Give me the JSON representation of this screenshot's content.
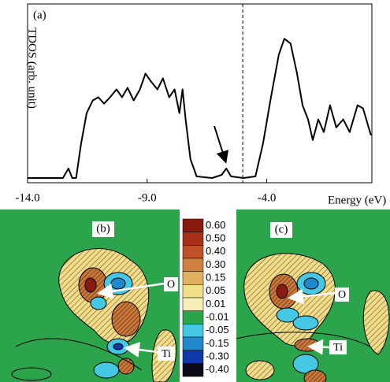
{
  "chart_data": {
    "type": "line",
    "panel_label": "(a)",
    "ylabel": "TDOS (arb. unit)",
    "xlabel": "Energy (eV)",
    "x": [
      -14.0,
      -12.52,
      -12.29,
      -12.13,
      -11.97,
      -11.76,
      -11.53,
      -11.27,
      -11.04,
      -10.8,
      -10.55,
      -10.28,
      -10.05,
      -9.82,
      -9.56,
      -9.3,
      -9.07,
      -8.84,
      -8.57,
      -8.34,
      -8.08,
      -7.85,
      -7.65,
      -7.52,
      -7.39,
      -7.19,
      -6.93,
      -6.28,
      -5.88,
      -5.69,
      -5.49,
      -4.97,
      -4.47,
      -4.15,
      -3.82,
      -3.49,
      -3.26,
      -3.0,
      -2.73,
      -2.5,
      -2.27,
      -2.07,
      -1.84,
      -1.61,
      -1.35,
      -1.09,
      -0.8,
      -0.53,
      -0.2,
      0.03,
      0.36
    ],
    "values": [
      0,
      0,
      6,
      0,
      0,
      22,
      41,
      49,
      51,
      47,
      51,
      56,
      51,
      57,
      49,
      56,
      66,
      61,
      56,
      63,
      51,
      56,
      41,
      56,
      37,
      12,
      1,
      0,
      2,
      6,
      1,
      0,
      1,
      22,
      51,
      78,
      88,
      85,
      66,
      46,
      37,
      24,
      37,
      29,
      46,
      32,
      37,
      29,
      46,
      44,
      27
    ],
    "color": "#000000",
    "xlim": [
      -14,
      0.4
    ],
    "ylim": [
      -3,
      110
    ],
    "xticks": [
      {
        "value": -14,
        "label": "-14.0"
      },
      {
        "value": -9,
        "label": "-9.0"
      },
      {
        "value": -4,
        "label": "-4.0"
      }
    ],
    "vline": -5.0
  },
  "contour_maps": {
    "panels": [
      {
        "label": "(b)",
        "atoms": [
          "O",
          "Ti"
        ]
      },
      {
        "label": "(c)",
        "atoms": [
          "O",
          "Ti"
        ]
      }
    ],
    "colorbar": {
      "labels": [
        "0.60",
        "0.50",
        "0.40",
        "0.30",
        "0.15",
        "0.05",
        "0.01",
        "-0.01",
        "-0.05",
        "-0.15",
        "-0.30",
        "-0.40"
      ],
      "colors": [
        "#8a1a10",
        "#a83018",
        "#c0502a",
        "#d08040",
        "#e0b060",
        "#f0e08a",
        "#f6efb8",
        "#2ca44c",
        "#44c8e4",
        "#2088cc",
        "#1038a8",
        "#0a0a18"
      ]
    }
  }
}
